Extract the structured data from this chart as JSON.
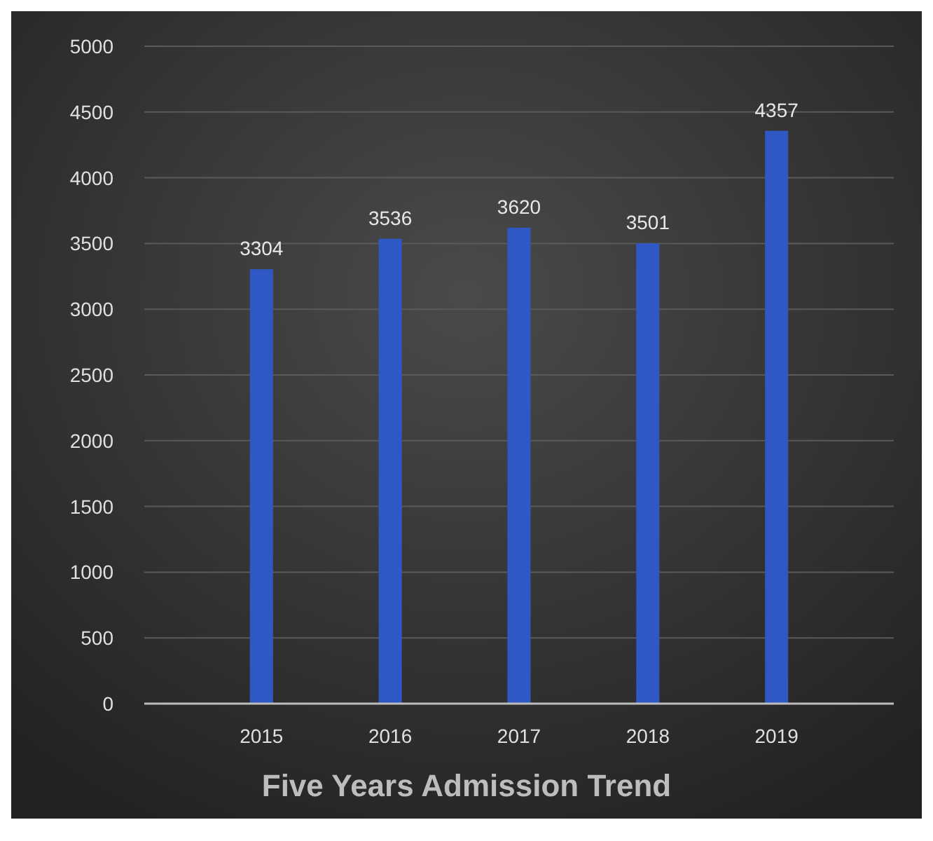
{
  "chart_data": {
    "type": "bar",
    "title": "Five Years Admission Trend",
    "categories": [
      "2015",
      "2016",
      "2017",
      "2018",
      "2019"
    ],
    "values": [
      3304,
      3536,
      3620,
      3501,
      4357
    ],
    "color": "#2f58c4",
    "ylim": [
      0,
      5000
    ],
    "yticks": [
      0,
      500,
      1000,
      1500,
      2000,
      2500,
      3000,
      3500,
      4000,
      4500,
      5000
    ],
    "grid": "y",
    "data_labels": true
  }
}
